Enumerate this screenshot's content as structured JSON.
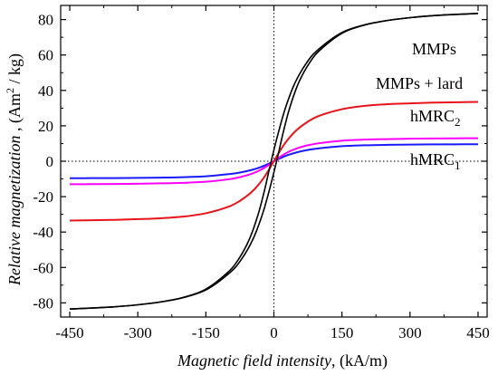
{
  "chart_data": {
    "type": "line",
    "xlabel": {
      "italic": "Magnetic field intensity",
      "unit": ", (kA/m)"
    },
    "ylabel": {
      "italic": "Relative magnetization",
      "unit": " , (Am",
      "unit_sup": "2",
      "unit_tail": " / kg)"
    },
    "xlim": [
      -470,
      470
    ],
    "ylim": [
      -88,
      88
    ],
    "xticks": [
      -450,
      -300,
      -150,
      0,
      150,
      300,
      450
    ],
    "yticks": [
      -80,
      -60,
      -40,
      -20,
      0,
      20,
      40,
      60,
      80
    ],
    "reference_lines": {
      "x": 0,
      "y": 0,
      "style": "dotted"
    },
    "series": [
      {
        "name": "MMPs",
        "label_parts": {
          "base": "MMPs",
          "sub": ""
        },
        "color": "#000000",
        "double_line": true,
        "loop_offset": 6,
        "x": [
          -450,
          -400,
          -350,
          -300,
          -250,
          -200,
          -150,
          -100,
          -75,
          -50,
          -30,
          -15,
          0,
          15,
          30,
          50,
          75,
          100,
          150,
          200,
          250,
          300,
          350,
          400,
          450
        ],
        "y": [
          -83.5,
          -82.9,
          -82.2,
          -81.1,
          -79.5,
          -77.0,
          -72.5,
          -63.0,
          -55.5,
          -44.0,
          -30.0,
          -16.0,
          0.0,
          16.0,
          30.0,
          44.0,
          55.5,
          63.0,
          72.5,
          77.0,
          79.5,
          81.1,
          82.2,
          82.9,
          83.5
        ]
      },
      {
        "name": "MMPs + lard",
        "label_parts": {
          "base": "MMPs + lard",
          "sub": ""
        },
        "color": "#e8141a",
        "double_line": false,
        "x": [
          -450,
          -400,
          -350,
          -300,
          -250,
          -200,
          -150,
          -100,
          -75,
          -50,
          -30,
          -15,
          0,
          15,
          30,
          50,
          75,
          100,
          150,
          200,
          250,
          300,
          350,
          400,
          450
        ],
        "y": [
          -33.5,
          -33.3,
          -33.1,
          -32.7,
          -32.2,
          -31.3,
          -29.4,
          -25.7,
          -22.4,
          -17.6,
          -12.0,
          -6.5,
          0.0,
          6.5,
          12.0,
          17.6,
          22.4,
          25.7,
          29.4,
          31.3,
          32.2,
          32.7,
          33.1,
          33.3,
          33.5
        ]
      },
      {
        "name": "hMRC2",
        "label_parts": {
          "base": "hMRC",
          "sub": "2"
        },
        "color": "#ff00ff",
        "double_line": false,
        "x": [
          -450,
          -400,
          -350,
          -300,
          -250,
          -200,
          -150,
          -100,
          -75,
          -50,
          -30,
          -15,
          0,
          15,
          30,
          50,
          75,
          100,
          150,
          200,
          250,
          300,
          350,
          400,
          450
        ],
        "y": [
          -13.0,
          -12.95,
          -12.85,
          -12.7,
          -12.5,
          -12.2,
          -11.6,
          -10.2,
          -9.0,
          -7.2,
          -5.0,
          -2.7,
          0.0,
          2.7,
          5.0,
          7.2,
          9.0,
          10.2,
          11.6,
          12.2,
          12.5,
          12.7,
          12.85,
          12.95,
          13.0
        ]
      },
      {
        "name": "hMRC1",
        "label_parts": {
          "base": "hMRC",
          "sub": "1"
        },
        "color": "#1a1aff",
        "double_line": false,
        "x": [
          -450,
          -400,
          -350,
          -300,
          -250,
          -200,
          -150,
          -100,
          -75,
          -50,
          -30,
          -15,
          0,
          15,
          30,
          50,
          75,
          100,
          150,
          200,
          250,
          300,
          350,
          400,
          450
        ],
        "y": [
          -9.6,
          -9.55,
          -9.5,
          -9.4,
          -9.25,
          -9.0,
          -8.5,
          -7.3,
          -6.4,
          -5.0,
          -3.4,
          -1.8,
          0.0,
          1.8,
          3.4,
          5.0,
          6.4,
          7.3,
          8.5,
          9.0,
          9.25,
          9.4,
          9.5,
          9.55,
          9.6
        ]
      }
    ]
  }
}
